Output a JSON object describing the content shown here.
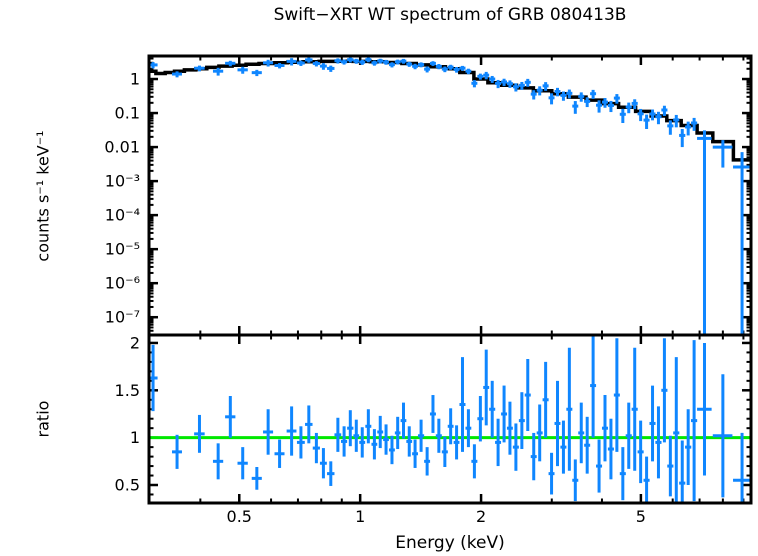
{
  "figure": {
    "title": "Swift−XRT WT spectrum of GRB 080413B",
    "background_color": "#ffffff",
    "frame_color": "#000000"
  },
  "chart_data": {
    "type": "scatter",
    "title": "Swift−XRT WT spectrum of GRB 080413B",
    "xlabel": "Energy (keV)",
    "x_axis": {
      "scale": "log",
      "min": 0.298,
      "max": 9.4,
      "major_ticks": [
        0.5,
        1,
        2,
        5
      ],
      "major_labels": [
        "0.5",
        "1",
        "2",
        "5"
      ],
      "minor_ticks": [
        0.4,
        0.6,
        0.7,
        0.8,
        0.9,
        3,
        4,
        6,
        7,
        8,
        9
      ]
    },
    "top_panel": {
      "ylabel": "counts s⁻¹ keV⁻¹",
      "y_axis": {
        "scale": "log",
        "min": 3e-08,
        "max": 4.75,
        "major_ticks": [
          1,
          0.1,
          0.01,
          0.001,
          0.0001,
          1e-05,
          1e-06,
          1e-07
        ],
        "major_labels": [
          "1",
          "0.1",
          "0.01",
          "10⁻³",
          "10⁻⁴",
          "10⁻⁵",
          "10⁻⁶",
          "10⁻⁷"
        ]
      },
      "model_color": "#000000",
      "data_color": "#0f86ff",
      "model_bins": [
        [
          0.298,
          0.31,
          1.7
        ],
        [
          0.31,
          0.327,
          1.45
        ],
        [
          0.327,
          0.345,
          1.55
        ],
        [
          0.345,
          0.365,
          1.7
        ],
        [
          0.365,
          0.39,
          1.85
        ],
        [
          0.39,
          0.415,
          2.0
        ],
        [
          0.415,
          0.445,
          2.2
        ],
        [
          0.445,
          0.48,
          2.4
        ],
        [
          0.48,
          0.52,
          2.55
        ],
        [
          0.52,
          0.56,
          2.7
        ],
        [
          0.56,
          0.61,
          2.85
        ],
        [
          0.61,
          0.66,
          3.0
        ],
        [
          0.66,
          0.72,
          3.1
        ],
        [
          0.72,
          0.79,
          3.2
        ],
        [
          0.79,
          0.87,
          3.3
        ],
        [
          0.87,
          0.96,
          3.35
        ],
        [
          0.96,
          1.06,
          3.3
        ],
        [
          1.06,
          1.16,
          3.2
        ],
        [
          1.16,
          1.27,
          3.05
        ],
        [
          1.27,
          1.38,
          2.85
        ],
        [
          1.38,
          1.5,
          2.6
        ],
        [
          1.5,
          1.63,
          2.3
        ],
        [
          1.63,
          1.77,
          2.0
        ],
        [
          1.77,
          1.92,
          1.55
        ],
        [
          1.92,
          2.08,
          1.0
        ],
        [
          2.08,
          2.25,
          0.78
        ],
        [
          2.25,
          2.45,
          0.66
        ],
        [
          2.45,
          2.7,
          0.55
        ],
        [
          2.7,
          3.0,
          0.45
        ],
        [
          3.0,
          3.3,
          0.37
        ],
        [
          3.3,
          3.65,
          0.295
        ],
        [
          3.65,
          4.0,
          0.24
        ],
        [
          4.0,
          4.4,
          0.19
        ],
        [
          4.4,
          4.85,
          0.148
        ],
        [
          4.85,
          5.3,
          0.112
        ],
        [
          5.3,
          5.8,
          0.082
        ],
        [
          5.8,
          6.3,
          0.06
        ],
        [
          6.3,
          6.9,
          0.043
        ],
        [
          6.9,
          7.55,
          0.026
        ],
        [
          7.55,
          8.5,
          0.0145
        ],
        [
          8.5,
          9.4,
          0.0042
        ]
      ],
      "points": [
        [
          0.305,
          0.008,
          2.6,
          0.55,
          0.55
        ],
        [
          0.35,
          0.01,
          1.4,
          0.28,
          0.28
        ],
        [
          0.398,
          0.012,
          2.08,
          0.4,
          0.4
        ],
        [
          0.443,
          0.013,
          1.7,
          0.44,
          0.44
        ],
        [
          0.475,
          0.014,
          2.9,
          0.53,
          0.53
        ],
        [
          0.51,
          0.015,
          1.86,
          0.43,
          0.43
        ],
        [
          0.553,
          0.016,
          1.54,
          0.32,
          0.32
        ],
        [
          0.59,
          0.017,
          3.0,
          0.67,
          0.67
        ],
        [
          0.63,
          0.018,
          2.5,
          0.45,
          0.45
        ],
        [
          0.675,
          0.019,
          3.3,
          0.8,
          0.8
        ],
        [
          0.712,
          0.016,
          2.95,
          0.53,
          0.53
        ],
        [
          0.745,
          0.016,
          3.65,
          0.64,
          0.64
        ],
        [
          0.778,
          0.016,
          2.85,
          0.51,
          0.51
        ],
        [
          0.81,
          0.016,
          2.4,
          0.53,
          0.53
        ],
        [
          0.845,
          0.018,
          2.05,
          0.43,
          0.43
        ],
        [
          0.88,
          0.017,
          3.45,
          0.6,
          0.6
        ],
        [
          0.912,
          0.016,
          3.2,
          0.54,
          0.54
        ],
        [
          0.945,
          0.017,
          3.7,
          0.64,
          0.64
        ],
        [
          0.978,
          0.016,
          3.37,
          0.56,
          0.56
        ],
        [
          1.012,
          0.017,
          3.13,
          0.53,
          0.53
        ],
        [
          1.048,
          0.018,
          3.7,
          0.59,
          0.59
        ],
        [
          1.085,
          0.018,
          2.98,
          0.51,
          0.51
        ],
        [
          1.122,
          0.019,
          3.4,
          0.54,
          0.54
        ],
        [
          1.16,
          0.019,
          3.14,
          0.51,
          0.51
        ],
        [
          1.2,
          0.02,
          2.65,
          0.46,
          0.46
        ],
        [
          1.24,
          0.02,
          3.2,
          0.52,
          0.52
        ],
        [
          1.282,
          0.021,
          3.36,
          0.54,
          0.54
        ],
        [
          1.325,
          0.022,
          2.74,
          0.46,
          0.46
        ],
        [
          1.37,
          0.023,
          2.37,
          0.43,
          0.43
        ],
        [
          1.418,
          0.025,
          2.65,
          0.44,
          0.44
        ],
        [
          1.468,
          0.025,
          1.95,
          0.39,
          0.39
        ],
        [
          1.518,
          0.026,
          2.88,
          0.46,
          0.46
        ],
        [
          1.57,
          0.027,
          2.35,
          0.41,
          0.41
        ],
        [
          1.625,
          0.028,
          1.96,
          0.37,
          0.37
        ],
        [
          1.68,
          0.028,
          2.24,
          0.38,
          0.38
        ],
        [
          1.738,
          0.029,
          1.9,
          0.36,
          0.36
        ],
        [
          1.798,
          0.031,
          2.09,
          0.34,
          0.34
        ],
        [
          1.86,
          0.031,
          1.7,
          0.31,
          0.31
        ],
        [
          1.925,
          0.033,
          0.75,
          0.18,
          0.18
        ],
        [
          1.992,
          0.034,
          1.2,
          0.24,
          0.24
        ],
        [
          2.06,
          0.035,
          1.3,
          0.32,
          0.32
        ],
        [
          2.132,
          0.037,
          1.0,
          0.23,
          0.23
        ],
        [
          2.205,
          0.038,
          0.74,
          0.2,
          0.2
        ],
        [
          2.282,
          0.039,
          0.82,
          0.2,
          0.2
        ],
        [
          2.36,
          0.04,
          0.73,
          0.18,
          0.18
        ],
        [
          2.442,
          0.042,
          0.59,
          0.16,
          0.16
        ],
        [
          2.527,
          0.043,
          0.65,
          0.17,
          0.17
        ],
        [
          2.614,
          0.045,
          0.8,
          0.21,
          0.21
        ],
        [
          2.705,
          0.046,
          0.36,
          0.11,
          0.11
        ],
        [
          2.799,
          0.048,
          0.47,
          0.14,
          0.14
        ],
        [
          2.896,
          0.05,
          0.63,
          0.18,
          0.18
        ],
        [
          2.996,
          0.051,
          0.28,
          0.1,
          0.1
        ],
        [
          3.1,
          0.053,
          0.43,
          0.12,
          0.12
        ],
        [
          3.207,
          0.055,
          0.33,
          0.1,
          0.1
        ],
        [
          3.318,
          0.057,
          0.38,
          0.11,
          0.11
        ],
        [
          3.433,
          0.059,
          0.16,
          0.065,
          0.065
        ],
        [
          3.552,
          0.061,
          0.31,
          0.095,
          0.095
        ],
        [
          3.675,
          0.063,
          0.22,
          0.07,
          0.07
        ],
        [
          3.802,
          0.065,
          0.37,
          0.11,
          0.11
        ],
        [
          3.934,
          0.068,
          0.17,
          0.067,
          0.067
        ],
        [
          4.07,
          0.07,
          0.21,
          0.067,
          0.067
        ],
        [
          4.211,
          0.073,
          0.167,
          0.06,
          0.06
        ],
        [
          4.357,
          0.075,
          0.275,
          0.086,
          0.086
        ],
        [
          4.508,
          0.078,
          0.092,
          0.041,
          0.041
        ],
        [
          4.664,
          0.081,
          0.151,
          0.052,
          0.052
        ],
        [
          4.826,
          0.084,
          0.192,
          0.062,
          0.062
        ],
        [
          4.993,
          0.087,
          0.095,
          0.037,
          0.037
        ],
        [
          5.166,
          0.09,
          0.062,
          0.028,
          0.028
        ],
        [
          5.345,
          0.093,
          0.094,
          0.033,
          0.033
        ],
        [
          5.53,
          0.097,
          0.078,
          0.031,
          0.031
        ],
        [
          5.722,
          0.1,
          0.123,
          0.041,
          0.041
        ],
        [
          5.92,
          0.104,
          0.042,
          0.019,
          0.019
        ],
        [
          6.125,
          0.108,
          0.063,
          0.025,
          0.025
        ],
        [
          6.338,
          0.112,
          0.022,
          0.012,
          0.012
        ],
        [
          6.557,
          0.116,
          0.039,
          0.017,
          0.017
        ],
        [
          6.784,
          0.12,
          0.051,
          0.021,
          0.021
        ],
        [
          7.2,
          0.3,
          0.018,
          null,
          0.013
        ],
        [
          8.0,
          0.45,
          0.01,
          0.0075,
          0.006
        ],
        [
          8.93,
          0.45,
          0.0026,
          null,
          0.0045
        ]
      ]
    },
    "bottom_panel": {
      "ylabel": "ratio",
      "y_axis": {
        "scale": "linear",
        "min": 0.31,
        "max": 2.084,
        "major_ticks": [
          0.5,
          1,
          1.5,
          2
        ],
        "major_labels": [
          "0.5",
          "1",
          "1.5",
          "2"
        ],
        "minor_step": 0.1
      },
      "reference_line": {
        "y": 1,
        "color": "#00e800"
      },
      "data_color": "#0f86ff",
      "points": [
        [
          0.305,
          0.008,
          1.63,
          0.35
        ],
        [
          0.35,
          0.01,
          0.85,
          0.18
        ],
        [
          0.398,
          0.012,
          1.04,
          0.2
        ],
        [
          0.443,
          0.013,
          0.75,
          0.19
        ],
        [
          0.475,
          0.014,
          1.22,
          0.22
        ],
        [
          0.51,
          0.015,
          0.73,
          0.17
        ],
        [
          0.553,
          0.016,
          0.57,
          0.12
        ],
        [
          0.59,
          0.017,
          1.06,
          0.24
        ],
        [
          0.63,
          0.018,
          0.83,
          0.15
        ],
        [
          0.675,
          0.019,
          1.07,
          0.26
        ],
        [
          0.712,
          0.016,
          0.95,
          0.17
        ],
        [
          0.745,
          0.016,
          1.14,
          0.2
        ],
        [
          0.778,
          0.016,
          0.89,
          0.16
        ],
        [
          0.81,
          0.016,
          0.73,
          0.16
        ],
        [
          0.845,
          0.018,
          0.62,
          0.13
        ],
        [
          0.88,
          0.017,
          1.03,
          0.18
        ],
        [
          0.912,
          0.016,
          0.96,
          0.16
        ],
        [
          0.945,
          0.017,
          1.1,
          0.19
        ],
        [
          0.978,
          0.016,
          1.02,
          0.17
        ],
        [
          1.012,
          0.017,
          0.95,
          0.16
        ],
        [
          1.048,
          0.018,
          1.12,
          0.18
        ],
        [
          1.085,
          0.018,
          0.93,
          0.16
        ],
        [
          1.122,
          0.019,
          1.06,
          0.17
        ],
        [
          1.16,
          0.019,
          0.98,
          0.16
        ],
        [
          1.2,
          0.02,
          0.87,
          0.15
        ],
        [
          1.24,
          0.02,
          1.05,
          0.17
        ],
        [
          1.282,
          0.021,
          1.18,
          0.19
        ],
        [
          1.325,
          0.022,
          0.96,
          0.16
        ],
        [
          1.37,
          0.023,
          0.83,
          0.15
        ],
        [
          1.418,
          0.025,
          1.02,
          0.17
        ],
        [
          1.468,
          0.025,
          0.75,
          0.15
        ],
        [
          1.518,
          0.026,
          1.25,
          0.2
        ],
        [
          1.57,
          0.027,
          1.02,
          0.18
        ],
        [
          1.625,
          0.028,
          0.85,
          0.16
        ],
        [
          1.68,
          0.028,
          1.12,
          0.19
        ],
        [
          1.738,
          0.029,
          0.95,
          0.18
        ],
        [
          1.798,
          0.031,
          1.35,
          0.5
        ],
        [
          1.86,
          0.031,
          1.1,
          0.2
        ],
        [
          1.925,
          0.033,
          0.75,
          0.18
        ],
        [
          1.992,
          0.034,
          1.2,
          0.24
        ],
        [
          2.06,
          0.035,
          1.53,
          0.4
        ],
        [
          2.132,
          0.037,
          1.3,
          0.3
        ],
        [
          2.205,
          0.038,
          0.95,
          0.25
        ],
        [
          2.282,
          0.039,
          1.25,
          0.3
        ],
        [
          2.36,
          0.04,
          1.1,
          0.28
        ],
        [
          2.442,
          0.042,
          0.9,
          0.25
        ],
        [
          2.527,
          0.043,
          1.18,
          0.3
        ],
        [
          2.614,
          0.045,
          1.45,
          0.38
        ],
        [
          2.705,
          0.046,
          0.8,
          0.25
        ],
        [
          2.799,
          0.048,
          1.05,
          0.3
        ],
        [
          2.896,
          0.05,
          1.4,
          0.4
        ],
        [
          2.996,
          0.051,
          0.62,
          0.22
        ],
        [
          3.1,
          0.053,
          1.15,
          0.45
        ],
        [
          3.207,
          0.055,
          0.9,
          0.28
        ],
        [
          3.318,
          0.057,
          1.3,
          0.65
        ],
        [
          3.433,
          0.059,
          0.55,
          0.22
        ],
        [
          3.552,
          0.061,
          1.05,
          0.32
        ],
        [
          3.675,
          0.063,
          0.92,
          0.3
        ],
        [
          3.802,
          0.065,
          1.55,
          0.55
        ],
        [
          3.934,
          0.068,
          0.7,
          0.28
        ],
        [
          4.07,
          0.07,
          1.1,
          0.35
        ],
        [
          4.211,
          0.073,
          0.88,
          0.32
        ],
        [
          4.357,
          0.075,
          1.45,
          0.6
        ],
        [
          4.508,
          0.078,
          0.62,
          0.28
        ],
        [
          4.664,
          0.081,
          1.02,
          0.35
        ],
        [
          4.826,
          0.084,
          1.3,
          0.65
        ],
        [
          4.993,
          0.087,
          0.85,
          0.33
        ],
        [
          5.166,
          0.09,
          0.55,
          0.25
        ],
        [
          5.345,
          0.093,
          1.15,
          0.4
        ],
        [
          5.53,
          0.097,
          0.95,
          0.38
        ],
        [
          5.722,
          0.1,
          1.5,
          0.55
        ],
        [
          5.92,
          0.104,
          0.7,
          0.32
        ],
        [
          6.125,
          0.108,
          1.05,
          0.8
        ],
        [
          6.338,
          0.112,
          0.52,
          0.45
        ],
        [
          6.557,
          0.116,
          0.9,
          0.4
        ],
        [
          6.784,
          0.12,
          1.18,
          0.85
        ],
        [
          7.2,
          0.3,
          1.3,
          0.7
        ],
        [
          8.0,
          0.45,
          1.02,
          0.65
        ],
        [
          8.93,
          0.45,
          0.55,
          0.5
        ]
      ]
    }
  }
}
